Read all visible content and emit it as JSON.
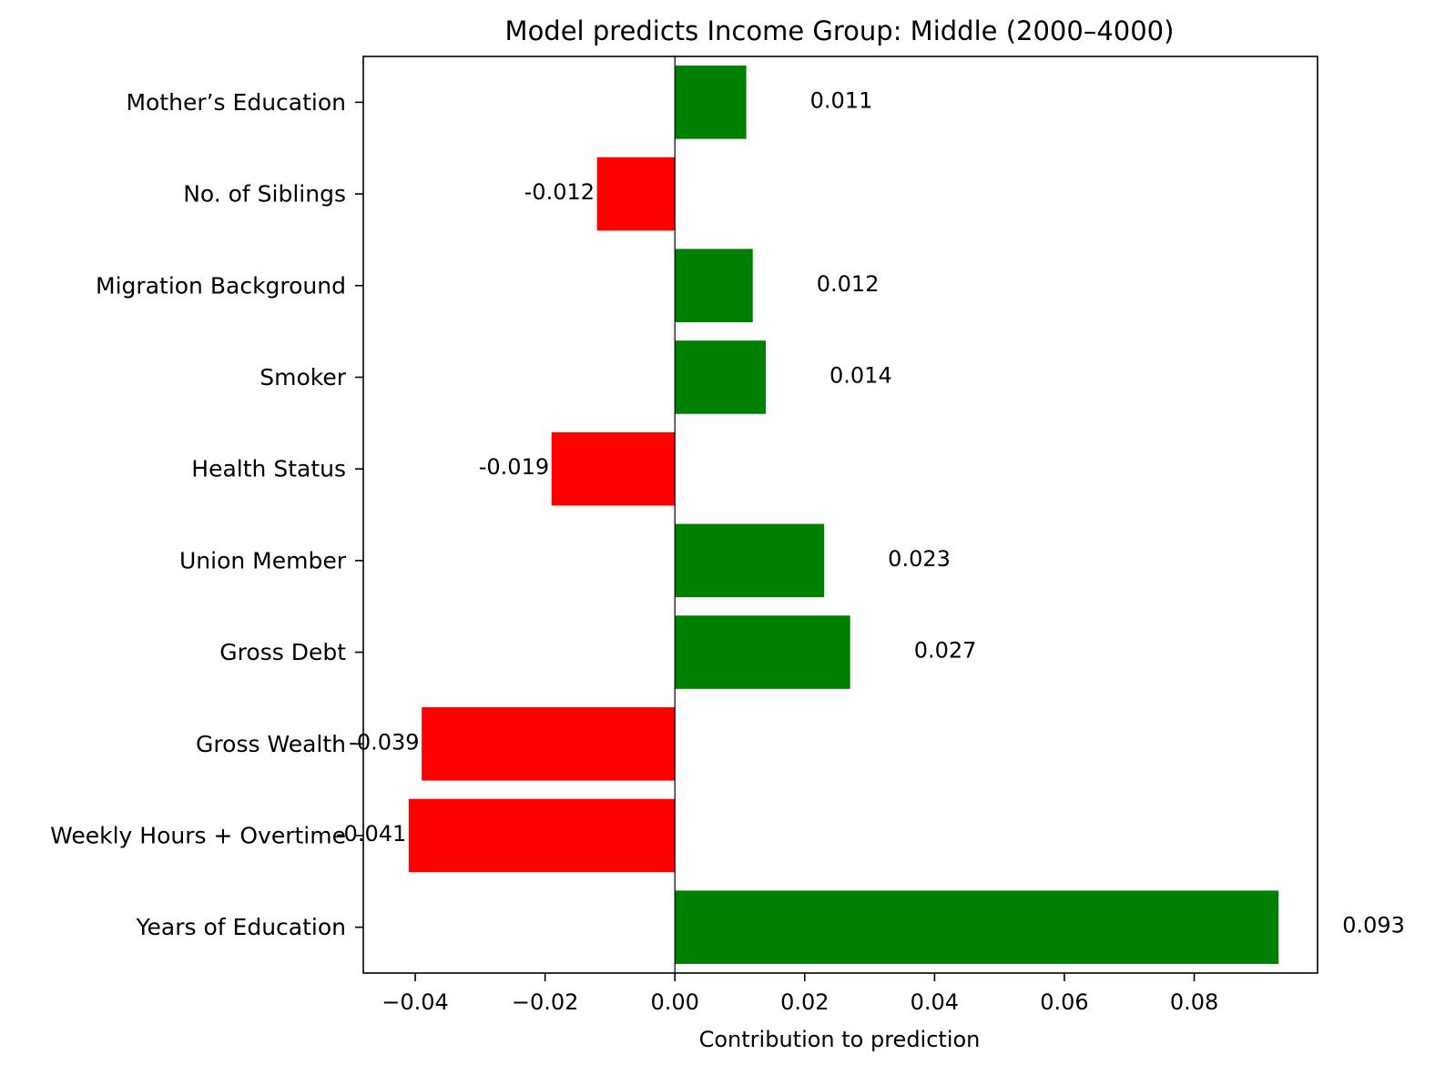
{
  "chart_data": {
    "type": "bar",
    "orientation": "horizontal",
    "title": "Model predicts Income Group: Middle (2000–4000)",
    "xlabel": "Contribution to prediction",
    "ylabel": "",
    "xlim": [
      -0.048,
      0.099
    ],
    "xticks": [
      -0.04,
      -0.02,
      0.0,
      0.02,
      0.04,
      0.06,
      0.08
    ],
    "xtick_labels": [
      "−0.04",
      "−0.02",
      "0.00",
      "0.02",
      "0.04",
      "0.06",
      "0.08"
    ],
    "grid": false,
    "categories": [
      "Years of Education",
      "Weekly Hours + Overtime",
      "Gross Wealth",
      "Gross Debt",
      "Union Member",
      "Health Status",
      "Smoker",
      "Migration Background",
      "No. of Siblings",
      "Mother’s Education"
    ],
    "values": [
      0.093,
      -0.041,
      -0.039,
      0.027,
      0.023,
      -0.019,
      0.014,
      0.012,
      -0.012,
      0.011
    ],
    "value_labels": [
      "0.093",
      "-0.041",
      "-0.039",
      "0.027",
      "0.023",
      "-0.019",
      "0.014",
      "0.012",
      "-0.012",
      "0.011"
    ],
    "colors": {
      "positive": "#008000",
      "negative": "#ff0000",
      "zero_line": "#000000"
    }
  }
}
